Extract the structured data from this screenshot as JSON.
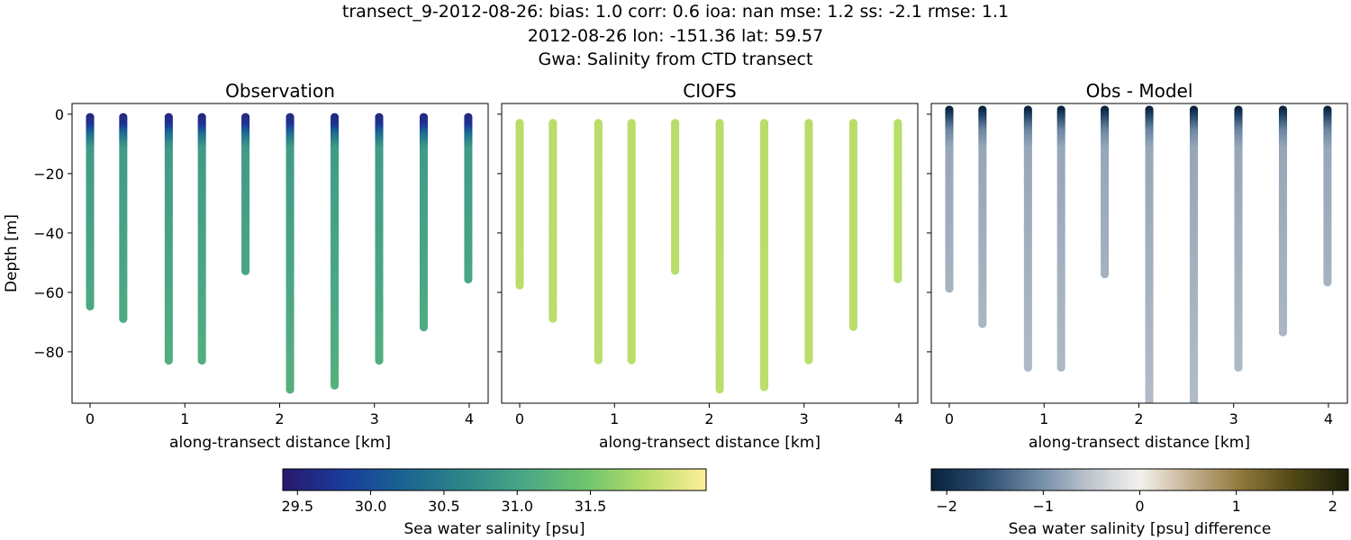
{
  "title": {
    "line1": "transect_9-2012-08-26: bias: 1.0  corr: 0.6  ioa: nan  mse: 1.2  ss: -2.1  rmse: 1.1",
    "line2": "2012-08-26 lon: -151.36 lat: 59.57",
    "line3": "Gwa: Salinity from CTD transect"
  },
  "chart_data": [
    {
      "type": "scatter",
      "title": "Observation",
      "xlabel": "along-transect distance [km]",
      "ylabel": "Depth [m]",
      "xlim": [
        -0.19,
        4.2
      ],
      "ylim": [
        -97.3,
        3.6
      ],
      "xticks": [
        "0",
        "1",
        "2",
        "3",
        "4"
      ],
      "yticks": [
        "0",
        "−20",
        "−40",
        "−60",
        "−80"
      ],
      "colormap": "haline",
      "stations": [
        {
          "x": 0,
          "top": -1,
          "bottom": -65
        },
        {
          "x": 0.35,
          "top": -1,
          "bottom": -69
        },
        {
          "x": 0.83,
          "top": -1,
          "bottom": -83
        },
        {
          "x": 1.18,
          "top": -1,
          "bottom": -83
        },
        {
          "x": 1.64,
          "top": -1,
          "bottom": -53
        },
        {
          "x": 2.11,
          "top": -1,
          "bottom": -93
        },
        {
          "x": 2.58,
          "top": -1,
          "bottom": -92
        },
        {
          "x": 3.05,
          "top": -1,
          "bottom": -83
        },
        {
          "x": 3.52,
          "top": -1,
          "bottom": -72
        },
        {
          "x": 3.99,
          "top": -1,
          "bottom": -56
        }
      ],
      "profile": [
        [
          -1,
          29.6
        ],
        [
          -4,
          29.7
        ],
        [
          -7,
          30.3
        ],
        [
          -12,
          30.9
        ],
        [
          -100,
          31.2
        ]
      ]
    },
    {
      "type": "scatter",
      "title": "CIOFS",
      "xlabel": "along-transect distance [km]",
      "xlim": [
        -0.19,
        4.2
      ],
      "ylim": [
        -97.3,
        3.6
      ],
      "xticks": [
        "0",
        "1",
        "2",
        "3",
        "4"
      ],
      "colormap": "haline",
      "stations": [
        {
          "x": 0,
          "top": -3,
          "bottom": -58
        },
        {
          "x": 0.35,
          "top": -3,
          "bottom": -69
        },
        {
          "x": 0.83,
          "top": -3,
          "bottom": -83
        },
        {
          "x": 1.18,
          "top": -3,
          "bottom": -83
        },
        {
          "x": 1.64,
          "top": -3,
          "bottom": -53
        },
        {
          "x": 2.11,
          "top": -3,
          "bottom": -93
        },
        {
          "x": 2.58,
          "top": -3,
          "bottom": -92
        },
        {
          "x": 3.05,
          "top": -3,
          "bottom": -83
        },
        {
          "x": 3.52,
          "top": -3,
          "bottom": -72
        },
        {
          "x": 3.99,
          "top": -3,
          "bottom": -56
        }
      ],
      "profile": [
        [
          -3,
          31.88
        ],
        [
          -100,
          31.9
        ]
      ]
    },
    {
      "type": "scatter",
      "title": "Obs - Model",
      "xlabel": "along-transect distance [km]",
      "xlim": [
        -0.19,
        4.2
      ],
      "ylim": [
        -97.3,
        3.6
      ],
      "xticks": [
        "0",
        "1",
        "2",
        "3",
        "4"
      ],
      "colormap": "diff",
      "stations": [
        {
          "x": 0,
          "top": 1.5,
          "bottom": -59
        },
        {
          "x": 0.35,
          "top": 1.5,
          "bottom": -71
        },
        {
          "x": 0.83,
          "top": 1.5,
          "bottom": -86
        },
        {
          "x": 1.18,
          "top": 1.5,
          "bottom": -86
        },
        {
          "x": 1.64,
          "top": 1.5,
          "bottom": -54
        },
        {
          "x": 2.11,
          "top": 1.5,
          "bottom": -100
        },
        {
          "x": 2.58,
          "top": 1.5,
          "bottom": -100
        },
        {
          "x": 3.05,
          "top": 1.5,
          "bottom": -86
        },
        {
          "x": 3.52,
          "top": 1.5,
          "bottom": -74
        },
        {
          "x": 3.99,
          "top": 1.5,
          "bottom": -57
        }
      ],
      "profile": [
        [
          1.5,
          -2.2
        ],
        [
          -2,
          -1.6
        ],
        [
          -6,
          -1.1
        ],
        [
          -12,
          -0.8
        ],
        [
          -100,
          -0.6
        ]
      ]
    }
  ],
  "colorbars": [
    {
      "label": "Sea water salinity [psu]",
      "range": [
        29.4,
        32.29
      ],
      "ticks": [
        "29.5",
        "30.0",
        "30.5",
        "31.0",
        "31.5"
      ],
      "tick_values": [
        29.5,
        30.0,
        30.5,
        31.0,
        31.5
      ],
      "colors": [
        "#2a186c",
        "#193c9b",
        "#1a6390",
        "#2f8689",
        "#4aa785",
        "#6fc46d",
        "#b7dd6a",
        "#fdef9a"
      ]
    },
    {
      "label": "Sea water salinity [psu] difference",
      "range": [
        -2.16,
        2.16
      ],
      "ticks": [
        "−2",
        "−1",
        "0",
        "1",
        "2"
      ],
      "tick_values": [
        -2,
        -1,
        0,
        1,
        2
      ],
      "colors": [
        "#07223d",
        "#2b4c6e",
        "#6d88a3",
        "#bcc3cc",
        "#f4f1ed",
        "#c2ae8c",
        "#8c7437",
        "#4d4615",
        "#1c1e0a"
      ]
    }
  ]
}
